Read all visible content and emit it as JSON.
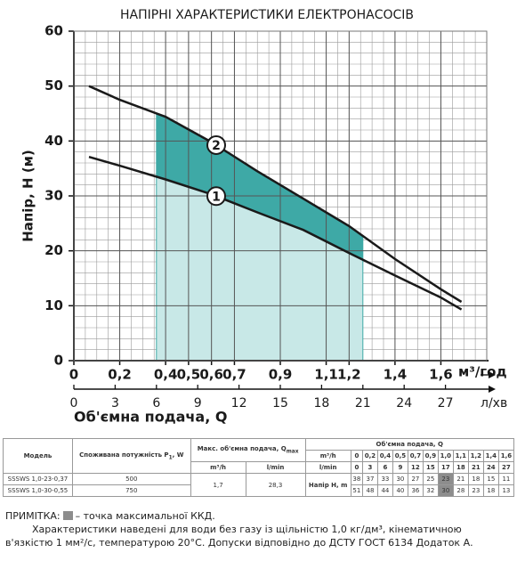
{
  "chart_data": {
    "type": "line",
    "title": "НАПІРНІ ХАРАКТЕРИСТИКИ ЕЛЕКТРОНАСОСІВ",
    "ylabel": "Напір, Н (м)",
    "xlabel": "Об'ємна подача, Q",
    "xunit": "м³/год",
    "x2unit": "л/хв",
    "xlim": [
      0,
      1.8
    ],
    "xticks": [
      0,
      0.2,
      0.4,
      0.5,
      0.6,
      0.7,
      0.9,
      1.1,
      1.2,
      1.4,
      1.6
    ],
    "x2lim": [
      0,
      30
    ],
    "x2ticks": [
      0,
      3,
      6,
      9,
      12,
      15,
      18,
      21,
      24,
      27
    ],
    "ylim": [
      0,
      60
    ],
    "yticks": [
      0,
      10,
      20,
      30,
      40,
      50,
      60
    ],
    "grid": true,
    "shade_x2": [
      6,
      21
    ],
    "shade_colors": [
      "#c8e8e7",
      "#3ea9a6"
    ],
    "series": [
      {
        "name": "1",
        "color": "#1a1a1a",
        "x": [
          0.066,
          0.2,
          0.4,
          0.6,
          0.8,
          1.0,
          1.2,
          1.4,
          1.6,
          1.69
        ],
        "values": [
          37.1,
          35.5,
          33,
          30.3,
          27,
          23.8,
          19.6,
          15.5,
          11.5,
          9.3
        ]
      },
      {
        "name": "2",
        "color": "#1a1a1a",
        "x": [
          0.066,
          0.2,
          0.4,
          0.6,
          0.8,
          1.0,
          1.2,
          1.4,
          1.6,
          1.69
        ],
        "values": [
          50,
          47.5,
          44.4,
          39.8,
          34.5,
          29.5,
          24.5,
          18.5,
          13,
          10.7
        ]
      }
    ]
  },
  "table": {
    "model": "Модель",
    "power": "Споживана потужність P",
    "power_sub": "1",
    "power_unit": ", W",
    "qmax": "Макс. об'ємна подача, Q",
    "qmax_sub": "max",
    "flow": "Об'ємна подача, Q",
    "qmax_units": [
      "m³/h",
      "l/min"
    ],
    "unit_rows": [
      [
        "m³/h",
        "0",
        "0,2",
        "0,4",
        "0,5",
        "0,7",
        "0,9",
        "1,0",
        "1,1",
        "1,2",
        "1,4",
        "1,6"
      ],
      [
        "l/min",
        "0",
        "3",
        "6",
        "9",
        "12",
        "15",
        "17",
        "18",
        "21",
        "24",
        "27"
      ]
    ],
    "head_label": "Напір H, m",
    "qmax_values": [
      "1,7",
      "28,3"
    ],
    "highlight_index": 7,
    "highlight_color": "#8d8d8d",
    "rows": [
      {
        "model": "SSSWS 1,0-23-0,37",
        "power": "500",
        "head": [
          "38",
          "37",
          "33",
          "30",
          "27",
          "25",
          "23",
          "21",
          "18",
          "15",
          "11"
        ]
      },
      {
        "model": "SSSWS 1,0-30-0,55",
        "power": "750",
        "head": [
          "51",
          "48",
          "44",
          "40",
          "36",
          "32",
          "30",
          "28",
          "23",
          "18",
          "13"
        ]
      }
    ]
  },
  "notes": {
    "label": "ПРИМІТКА:",
    "legend": "– точка максимальної ККД.",
    "text": "Характеристики наведені для води без газу із щільністю 1,0 кг/дм³, кінематичною в'язкістю 1 мм²/с, температурою 20°С. Допуски відповідно до ДСТУ ГОСТ 6134 Додаток А."
  }
}
